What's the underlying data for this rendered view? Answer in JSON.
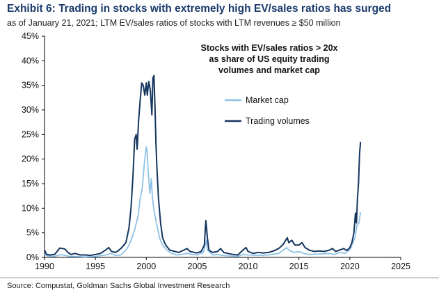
{
  "header": {
    "title": "Exhibit 6: Trading in stocks with extremely high EV/sales ratios has surged",
    "subtitle": "as of January 21, 2021; LTM EV/sales ratios of stocks with LTM revenues ≥ $50 million"
  },
  "footer": {
    "source": "Source: Compustat, Goldman Sachs Global Investment Research"
  },
  "colors": {
    "market_cap": "#8ec1e6",
    "trading_volumes": "#14355e",
    "axis": "#000000"
  },
  "chart_data": {
    "type": "line",
    "title": "Exhibit 6: Trading in stocks with extremely high EV/sales ratios has surged",
    "annotation": [
      "Stocks with EV/sales ratios > 20x",
      "as share of US equity trading",
      "volumes and market cap"
    ],
    "xlim": [
      1990,
      2025
    ],
    "ylim": [
      0,
      45
    ],
    "x_ticks": [
      1990,
      1995,
      2000,
      2005,
      2010,
      2015,
      2020,
      2025
    ],
    "y_ticks": [
      0,
      5,
      10,
      15,
      20,
      25,
      30,
      35,
      40,
      45
    ],
    "y_tick_labels": [
      "0%",
      "5%",
      "10%",
      "15%",
      "20%",
      "25%",
      "30%",
      "35%",
      "40%",
      "45%"
    ],
    "x_tick_labels": [
      "1990",
      "1995",
      "2000",
      "2005",
      "2010",
      "2015",
      "2020",
      "2025"
    ],
    "grid": false,
    "legend_position": "upper-middle",
    "series": [
      {
        "name": "Market cap",
        "color": "#8ec1e6",
        "points": [
          [
            1990.0,
            0.6
          ],
          [
            1990.3,
            0.3
          ],
          [
            1991.0,
            0.2
          ],
          [
            1991.6,
            0.6
          ],
          [
            1992.0,
            0.4
          ],
          [
            1992.5,
            0.2
          ],
          [
            1993.0,
            0.2
          ],
          [
            1994.0,
            0.1
          ],
          [
            1995.0,
            0.2
          ],
          [
            1996.0,
            0.5
          ],
          [
            1996.5,
            0.8
          ],
          [
            1997.0,
            0.4
          ],
          [
            1997.5,
            0.5
          ],
          [
            1998.0,
            1.5
          ],
          [
            1998.3,
            2.5
          ],
          [
            1998.6,
            4.0
          ],
          [
            1998.9,
            6.0
          ],
          [
            1999.2,
            8.5
          ],
          [
            1999.4,
            12.0
          ],
          [
            1999.6,
            14.0
          ],
          [
            1999.8,
            19.0
          ],
          [
            2000.0,
            22.5
          ],
          [
            2000.1,
            21.0
          ],
          [
            2000.2,
            17.0
          ],
          [
            2000.35,
            13.0
          ],
          [
            2000.5,
            16.0
          ],
          [
            2000.6,
            12.0
          ],
          [
            2000.8,
            9.0
          ],
          [
            2001.0,
            7.0
          ],
          [
            2001.3,
            4.0
          ],
          [
            2001.6,
            2.5
          ],
          [
            2002.0,
            1.5
          ],
          [
            2002.5,
            0.8
          ],
          [
            2003.0,
            0.5
          ],
          [
            2003.5,
            0.6
          ],
          [
            2004.0,
            0.8
          ],
          [
            2004.5,
            0.6
          ],
          [
            2005.0,
            0.5
          ],
          [
            2005.6,
            1.0
          ],
          [
            2005.9,
            3.5
          ],
          [
            2006.0,
            1.5
          ],
          [
            2006.5,
            0.5
          ],
          [
            2007.0,
            0.6
          ],
          [
            2007.5,
            0.4
          ],
          [
            2008.0,
            0.3
          ],
          [
            2009.0,
            0.2
          ],
          [
            2009.5,
            0.6
          ],
          [
            2010.0,
            0.5
          ],
          [
            2011.0,
            0.4
          ],
          [
            2012.0,
            0.5
          ],
          [
            2013.0,
            0.8
          ],
          [
            2013.8,
            2.0
          ],
          [
            2014.0,
            1.5
          ],
          [
            2014.5,
            1.0
          ],
          [
            2015.0,
            1.2
          ],
          [
            2015.5,
            0.8
          ],
          [
            2016.0,
            0.6
          ],
          [
            2017.0,
            0.7
          ],
          [
            2018.0,
            0.8
          ],
          [
            2018.5,
            0.6
          ],
          [
            2019.0,
            1.0
          ],
          [
            2019.5,
            0.8
          ],
          [
            2020.0,
            1.5
          ],
          [
            2020.3,
            3.0
          ],
          [
            2020.5,
            4.0
          ],
          [
            2020.7,
            6.5
          ],
          [
            2020.9,
            7.0
          ],
          [
            2021.05,
            9.2
          ]
        ]
      },
      {
        "name": "Trading volumes",
        "color": "#14355e",
        "points": [
          [
            1990.0,
            1.5
          ],
          [
            1990.2,
            0.6
          ],
          [
            1990.5,
            0.5
          ],
          [
            1991.0,
            0.6
          ],
          [
            1991.5,
            1.9
          ],
          [
            1991.8,
            1.8
          ],
          [
            1992.0,
            1.7
          ],
          [
            1992.3,
            1.0
          ],
          [
            1992.6,
            0.6
          ],
          [
            1993.0,
            0.8
          ],
          [
            1993.5,
            0.5
          ],
          [
            1994.0,
            0.5
          ],
          [
            1994.5,
            0.4
          ],
          [
            1995.0,
            0.6
          ],
          [
            1995.5,
            0.8
          ],
          [
            1996.0,
            1.5
          ],
          [
            1996.3,
            2.0
          ],
          [
            1996.6,
            1.2
          ],
          [
            1997.0,
            1.0
          ],
          [
            1997.5,
            1.8
          ],
          [
            1998.0,
            3.0
          ],
          [
            1998.3,
            6.0
          ],
          [
            1998.5,
            10.0
          ],
          [
            1998.7,
            17.0
          ],
          [
            1998.85,
            24.0
          ],
          [
            1999.0,
            25.0
          ],
          [
            1999.1,
            22.0
          ],
          [
            1999.25,
            28.0
          ],
          [
            1999.4,
            32.0
          ],
          [
            1999.55,
            35.5
          ],
          [
            1999.7,
            35.0
          ],
          [
            1999.85,
            33.0
          ],
          [
            2000.0,
            35.5
          ],
          [
            2000.1,
            33.0
          ],
          [
            2000.25,
            35.8
          ],
          [
            2000.4,
            34.0
          ],
          [
            2000.55,
            29.0
          ],
          [
            2000.65,
            36.5
          ],
          [
            2000.75,
            37.0
          ],
          [
            2000.85,
            31.0
          ],
          [
            2000.95,
            23.0
          ],
          [
            2001.05,
            18.0
          ],
          [
            2001.2,
            12.0
          ],
          [
            2001.4,
            7.0
          ],
          [
            2001.6,
            4.0
          ],
          [
            2001.9,
            2.5
          ],
          [
            2002.3,
            1.5
          ],
          [
            2002.8,
            1.2
          ],
          [
            2003.2,
            1.0
          ],
          [
            2003.6,
            1.4
          ],
          [
            2004.0,
            1.8
          ],
          [
            2004.3,
            1.2
          ],
          [
            2004.7,
            1.0
          ],
          [
            2005.0,
            0.9
          ],
          [
            2005.4,
            1.2
          ],
          [
            2005.7,
            2.5
          ],
          [
            2005.85,
            7.5
          ],
          [
            2006.0,
            4.0
          ],
          [
            2006.15,
            1.5
          ],
          [
            2006.5,
            1.0
          ],
          [
            2007.0,
            1.2
          ],
          [
            2007.3,
            1.8
          ],
          [
            2007.6,
            1.0
          ],
          [
            2008.0,
            0.8
          ],
          [
            2008.5,
            0.6
          ],
          [
            2009.0,
            0.5
          ],
          [
            2009.5,
            1.5
          ],
          [
            2009.8,
            2.0
          ],
          [
            2010.0,
            1.2
          ],
          [
            2010.5,
            0.8
          ],
          [
            2011.0,
            1.0
          ],
          [
            2011.5,
            0.9
          ],
          [
            2012.0,
            1.0
          ],
          [
            2012.5,
            1.3
          ],
          [
            2013.0,
            1.8
          ],
          [
            2013.4,
            2.5
          ],
          [
            2013.7,
            3.5
          ],
          [
            2013.85,
            4.0
          ],
          [
            2014.0,
            3.0
          ],
          [
            2014.3,
            3.5
          ],
          [
            2014.6,
            2.5
          ],
          [
            2015.0,
            2.5
          ],
          [
            2015.3,
            3.0
          ],
          [
            2015.6,
            2.0
          ],
          [
            2016.0,
            1.5
          ],
          [
            2016.5,
            1.2
          ],
          [
            2017.0,
            1.3
          ],
          [
            2017.5,
            1.2
          ],
          [
            2018.0,
            1.5
          ],
          [
            2018.3,
            1.8
          ],
          [
            2018.6,
            1.2
          ],
          [
            2019.0,
            1.5
          ],
          [
            2019.4,
            1.8
          ],
          [
            2019.7,
            1.4
          ],
          [
            2020.0,
            2.0
          ],
          [
            2020.2,
            3.0
          ],
          [
            2020.4,
            5.0
          ],
          [
            2020.55,
            9.0
          ],
          [
            2020.65,
            7.0
          ],
          [
            2020.75,
            12.0
          ],
          [
            2020.85,
            15.0
          ],
          [
            2020.95,
            21.0
          ],
          [
            2021.05,
            23.5
          ]
        ]
      }
    ]
  }
}
